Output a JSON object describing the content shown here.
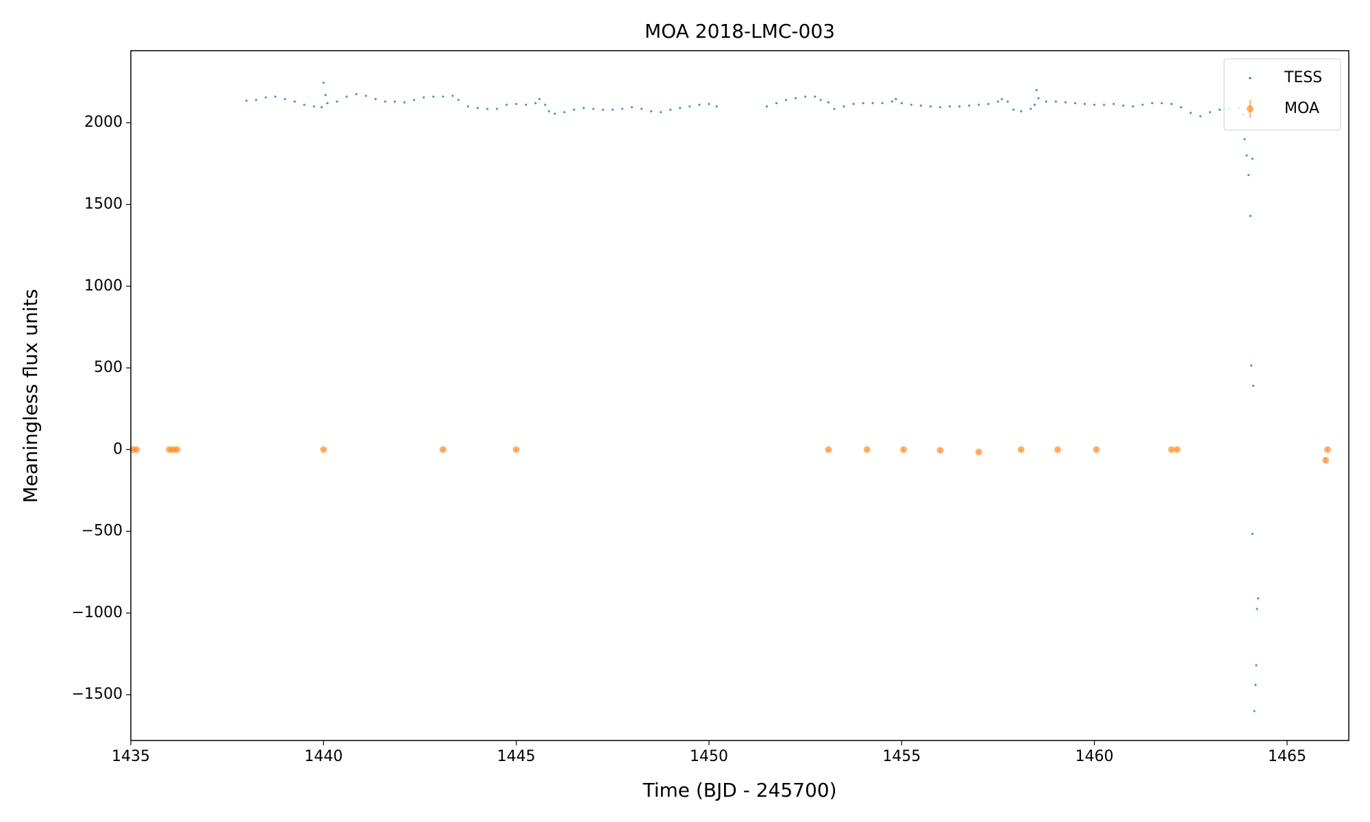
{
  "chart_data": {
    "type": "scatter",
    "title": "MOA 2018-LMC-003",
    "x_label": "Time (BJD - 245700)",
    "y_label": "Meaningless flux units",
    "xlim": [
      1435,
      1466.6
    ],
    "ylim": [
      -1780,
      2441
    ],
    "xticks": [
      1435,
      1440,
      1445,
      1450,
      1455,
      1460,
      1465
    ],
    "yticks": [
      {
        "value": -1500,
        "label": "−1500"
      },
      {
        "value": -1000,
        "label": "−1000"
      },
      {
        "value": -500,
        "label": "−500"
      },
      0,
      500,
      1000,
      1500,
      2000
    ],
    "legend": "upper right",
    "series": [
      {
        "name": "TESS",
        "color": "#1f77b4",
        "x": [
          1438.0,
          1438.25,
          1438.5,
          1438.75,
          1439.0,
          1439.25,
          1439.5,
          1439.75,
          1439.95,
          1440.0,
          1440.05,
          1440.1,
          1440.35,
          1440.6,
          1440.85,
          1441.1,
          1441.35,
          1441.6,
          1441.85,
          1442.1,
          1442.35,
          1442.6,
          1442.85,
          1443.1,
          1443.35,
          1443.5,
          1443.75,
          1444.0,
          1444.25,
          1444.5,
          1444.75,
          1445.0,
          1445.25,
          1445.5,
          1445.6,
          1445.75,
          1445.85,
          1446.0,
          1446.25,
          1446.5,
          1446.75,
          1447.0,
          1447.25,
          1447.5,
          1447.75,
          1448.0,
          1448.25,
          1448.5,
          1448.75,
          1449.0,
          1449.25,
          1449.5,
          1449.75,
          1450.0,
          1450.2,
          1451.5,
          1451.75,
          1452.0,
          1452.25,
          1452.5,
          1452.75,
          1452.9,
          1453.1,
          1453.25,
          1453.5,
          1453.75,
          1454.0,
          1454.25,
          1454.5,
          1454.75,
          1454.85,
          1455.0,
          1455.25,
          1455.5,
          1455.75,
          1456.0,
          1456.25,
          1456.5,
          1456.75,
          1457.0,
          1457.25,
          1457.5,
          1457.6,
          1457.75,
          1457.9,
          1458.1,
          1458.35,
          1458.45,
          1458.5,
          1458.55,
          1458.75,
          1459.0,
          1459.25,
          1459.5,
          1459.75,
          1460.0,
          1460.25,
          1460.5,
          1460.75,
          1461.0,
          1461.25,
          1461.5,
          1461.75,
          1462.0,
          1462.25,
          1462.5,
          1462.75,
          1463.0,
          1463.25,
          1463.5,
          1463.75,
          1463.85,
          1463.9,
          1463.95,
          1464.0,
          1464.05,
          1464.1,
          1464.07,
          1464.12,
          1464.1,
          1464.25,
          1464.22,
          1464.2,
          1464.18,
          1464.15
        ],
        "values": [
          2135,
          2140,
          2155,
          2160,
          2145,
          2130,
          2110,
          2100,
          2095,
          2245,
          2170,
          2120,
          2130,
          2160,
          2175,
          2165,
          2145,
          2130,
          2130,
          2125,
          2140,
          2155,
          2160,
          2160,
          2165,
          2140,
          2100,
          2090,
          2085,
          2085,
          2110,
          2115,
          2110,
          2120,
          2145,
          2110,
          2070,
          2055,
          2065,
          2080,
          2090,
          2085,
          2080,
          2080,
          2085,
          2095,
          2085,
          2070,
          2065,
          2080,
          2090,
          2100,
          2110,
          2115,
          2100,
          2100,
          2120,
          2140,
          2150,
          2160,
          2160,
          2140,
          2125,
          2085,
          2100,
          2115,
          2120,
          2120,
          2120,
          2130,
          2145,
          2120,
          2110,
          2105,
          2100,
          2095,
          2100,
          2100,
          2105,
          2110,
          2115,
          2130,
          2145,
          2130,
          2080,
          2070,
          2085,
          2110,
          2200,
          2150,
          2130,
          2130,
          2125,
          2120,
          2115,
          2110,
          2110,
          2115,
          2105,
          2100,
          2110,
          2120,
          2120,
          2115,
          2095,
          2060,
          2040,
          2065,
          2080,
          2085,
          2090,
          2050,
          1900,
          1800,
          1680,
          1430,
          1780,
          515,
          390,
          -515,
          -910,
          -975,
          -1320,
          -1440,
          -1600
        ]
      },
      {
        "name": "MOA",
        "color": "#ff7f0e",
        "x": [
          1435.05,
          1435.15,
          1436.0,
          1436.1,
          1436.2,
          1440.0,
          1443.1,
          1445.0,
          1453.1,
          1454.1,
          1455.05,
          1456.0,
          1457.0,
          1458.1,
          1459.05,
          1460.05,
          1462.0,
          1462.15,
          1466.0,
          1466.05
        ],
        "values": [
          0,
          0,
          0,
          0,
          0,
          0,
          0,
          0,
          0,
          0,
          0,
          -5,
          -15,
          0,
          0,
          0,
          0,
          0,
          -65,
          0
        ],
        "yerr": [
          8,
          8,
          8,
          8,
          8,
          8,
          8,
          8,
          8,
          8,
          8,
          8,
          8,
          8,
          8,
          8,
          8,
          8,
          15,
          8
        ]
      }
    ]
  }
}
